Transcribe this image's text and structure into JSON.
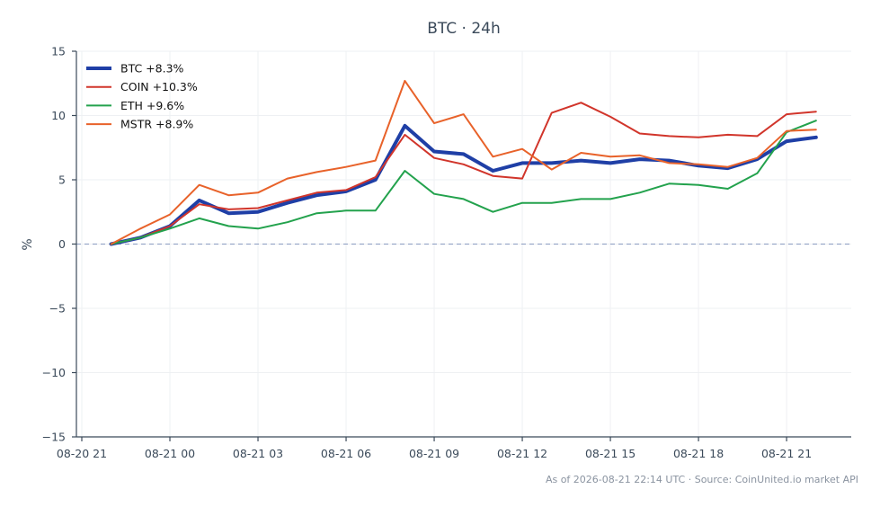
{
  "chart_data": {
    "type": "line",
    "title": "BTC · 24h",
    "ylabel": "%",
    "xlabel": "",
    "ylim": [
      -15,
      15
    ],
    "yticks": [
      15,
      10,
      5,
      0,
      -5,
      -10,
      -15
    ],
    "ytick_labels": [
      "15",
      "10",
      "5",
      "0",
      "−5",
      "−10",
      "−15"
    ],
    "xticks": [
      "08-20 21",
      "08-21 00",
      "08-21 03",
      "08-21 06",
      "08-21 09",
      "08-21 12",
      "08-21 15",
      "08-21 18",
      "08-21 21"
    ],
    "x": [
      "08-20 22",
      "08-20 23",
      "08-21 00",
      "08-21 01",
      "08-21 02",
      "08-21 03",
      "08-21 04",
      "08-21 05",
      "08-21 06",
      "08-21 07",
      "08-21 08",
      "08-21 09",
      "08-21 10",
      "08-21 11",
      "08-21 12",
      "08-21 13",
      "08-21 14",
      "08-21 15",
      "08-21 16",
      "08-21 17",
      "08-21 18",
      "08-21 19",
      "08-21 20",
      "08-21 21",
      "08-21 22"
    ],
    "grid": true,
    "legend_position": "top-left",
    "zero_line": {
      "y": 0,
      "style": "dashed",
      "color": "#8a9bc0"
    },
    "series": [
      {
        "name": "BTC +8.3%",
        "color": "#1f3fa6",
        "width": 4,
        "values": [
          0.0,
          0.5,
          1.4,
          3.4,
          2.4,
          2.5,
          3.2,
          3.8,
          4.1,
          5.0,
          9.2,
          7.2,
          7.0,
          5.7,
          6.3,
          6.3,
          6.5,
          6.3,
          6.6,
          6.5,
          6.1,
          5.9,
          6.6,
          8.0,
          8.3
        ]
      },
      {
        "name": "COIN +10.3%",
        "color": "#d1352b",
        "width": 2,
        "values": [
          0.0,
          0.5,
          1.4,
          3.1,
          2.7,
          2.8,
          3.4,
          4.0,
          4.2,
          5.2,
          8.5,
          6.7,
          6.2,
          5.3,
          5.1,
          10.2,
          11.0,
          9.9,
          8.6,
          8.4,
          8.3,
          8.5,
          8.4,
          10.1,
          10.3
        ]
      },
      {
        "name": "ETH +9.6%",
        "color": "#23a24d",
        "width": 2,
        "values": [
          0.0,
          0.5,
          1.2,
          2.0,
          1.4,
          1.2,
          1.7,
          2.4,
          2.6,
          2.6,
          5.7,
          3.9,
          3.5,
          2.5,
          3.2,
          3.2,
          3.5,
          3.5,
          4.0,
          4.7,
          4.6,
          4.3,
          5.5,
          8.7,
          9.6
        ]
      },
      {
        "name": "MSTR +8.9%",
        "color": "#e8622a",
        "width": 2,
        "values": [
          0.0,
          1.2,
          2.3,
          4.6,
          3.8,
          4.0,
          5.1,
          5.6,
          6.0,
          6.5,
          12.7,
          9.4,
          10.1,
          6.8,
          7.4,
          5.8,
          7.1,
          6.8,
          6.9,
          6.3,
          6.2,
          6.0,
          6.7,
          8.8,
          8.9
        ]
      }
    ]
  },
  "footer": {
    "source": "As of 2026-08-21 22:14 UTC · Source: CoinUnited.io market API"
  }
}
